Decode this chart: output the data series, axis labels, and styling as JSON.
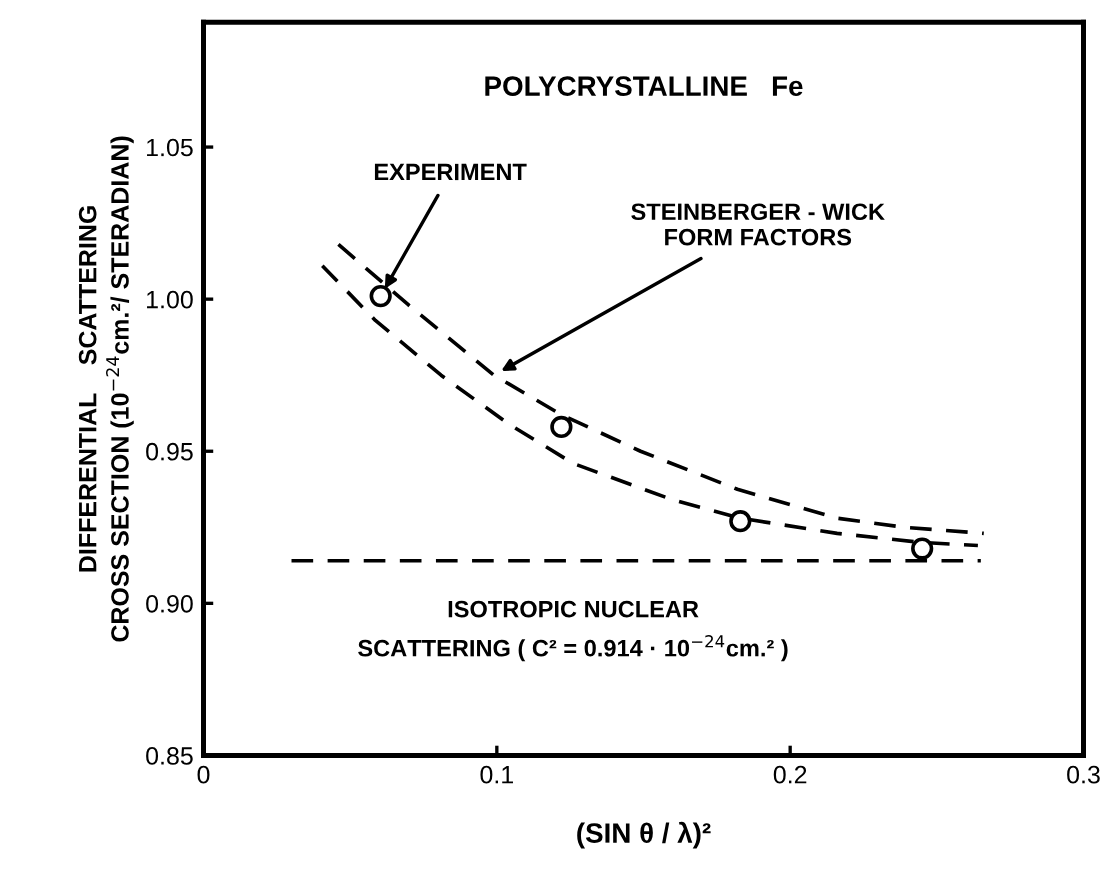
{
  "chart_data": {
    "type": "scatter",
    "title": "POLYCRYSTALLINE   Fe",
    "xlabel": "(SIN θ / λ)²",
    "ylabel": "DIFFERENTIAL    SCATTERING\nCROSS SECTION (10$^{−24}$cm.²/ STERADIAN)",
    "xlim": [
      0,
      0.3
    ],
    "ylim": [
      0.85,
      1.091
    ],
    "xticks": [
      0,
      0.1,
      0.2,
      0.3
    ],
    "yticks": [
      0.85,
      {
        "value": 0.9,
        "label": "0.90"
      },
      0.95,
      {
        "value": 1.0,
        "label": "1.00"
      },
      1.05
    ],
    "series": [
      {
        "marker": "circle",
        "color": "#000000",
        "x": [
          0.0604,
          0.122,
          0.183,
          0.245
        ],
        "values": [
          1.001,
          0.958,
          0.927,
          0.918
        ]
      },
      {
        "type": "line",
        "line_style": "dashed",
        "color": "#000000",
        "x": [
          0.046,
          0.07,
          0.099,
          0.122,
          0.149,
          0.182,
          0.216,
          0.239,
          0.266
        ],
        "values": [
          1.018,
          0.998,
          0.975,
          0.962,
          0.95,
          0.9375,
          0.928,
          0.925,
          0.923
        ]
      },
      {
        "type": "line",
        "line_style": "dashed",
        "color": "#000000",
        "x": [
          0.0405,
          0.0586,
          0.081,
          0.104,
          0.126,
          0.16,
          0.183,
          0.216,
          0.245,
          0.264
        ],
        "values": [
          1.011,
          0.993,
          0.975,
          0.959,
          0.946,
          0.934,
          0.928,
          0.923,
          0.92,
          0.919
        ]
      },
      {
        "type": "line",
        "line_style": "dashed",
        "color": "#000000",
        "x": [
          0.03,
          0.265
        ],
        "values": [
          0.914,
          0.914
        ]
      }
    ],
    "annotations": [
      {
        "text": "EXPERIMENT",
        "x": 0.0604,
        "y": 1.001
      },
      {
        "text": "STEINBERGER - WICK\nFORM FACTORS",
        "x": 0.099,
        "y": 0.975
      },
      "ISOTROPIC NUCLEAR\nSCATTERING ( C² = 0.914 · 10$^{−24}$cm.² )"
    ]
  }
}
